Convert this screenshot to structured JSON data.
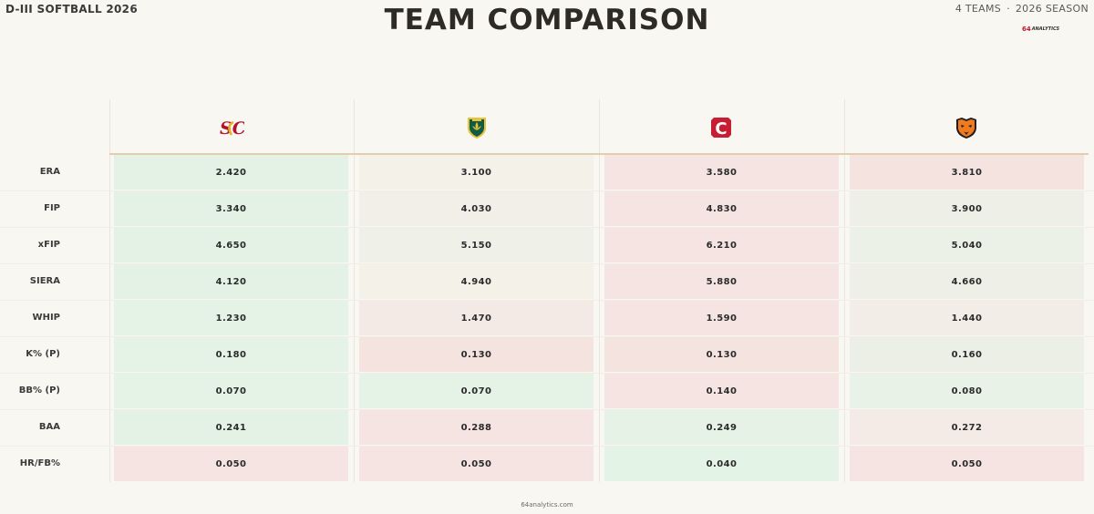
{
  "header": {
    "left_label": "D-III SOFTBALL 2026",
    "title": "TEAM COMPARISON",
    "right_teams": "4 TEAMS",
    "right_separator": "·",
    "right_season": "2026 SEASON",
    "brand_number": "64",
    "brand_word": "ANALYTICS"
  },
  "teams": [
    {
      "logo_icon": "sc-monogram-logo",
      "logo_text": "SC",
      "primary": "#b5112f",
      "secondary": "#e2b324"
    },
    {
      "logo_icon": "shield-fleur-logo",
      "primary": "#0f5b44",
      "secondary": "#e8c23a"
    },
    {
      "logo_icon": "block-c-logo",
      "logo_text": "C",
      "primary": "#c81d32",
      "secondary": "#ffffff"
    },
    {
      "logo_icon": "panther-head-logo",
      "primary": "#f07b1e",
      "secondary": "#1e1e1e"
    }
  ],
  "metrics": [
    {
      "label": "ERA",
      "values": [
        "2.420",
        "3.100",
        "3.580",
        "3.810"
      ]
    },
    {
      "label": "FIP",
      "values": [
        "3.340",
        "4.030",
        "4.830",
        "3.900"
      ]
    },
    {
      "label": "xFIP",
      "values": [
        "4.650",
        "5.150",
        "6.210",
        "5.040"
      ]
    },
    {
      "label": "SIERA",
      "values": [
        "4.120",
        "4.940",
        "5.880",
        "4.660"
      ]
    },
    {
      "label": "WHIP",
      "values": [
        "1.230",
        "1.470",
        "1.590",
        "1.440"
      ]
    },
    {
      "label": "K% (P)",
      "values": [
        "0.180",
        "0.130",
        "0.130",
        "0.160"
      ]
    },
    {
      "label": "BB% (P)",
      "values": [
        "0.070",
        "0.070",
        "0.140",
        "0.080"
      ]
    },
    {
      "label": "BAA",
      "values": [
        "0.241",
        "0.288",
        "0.249",
        "0.272"
      ]
    },
    {
      "label": "HR/FB%",
      "values": [
        "0.050",
        "0.050",
        "0.040",
        "0.050"
      ]
    }
  ],
  "cell_colors": [
    [
      "#e3f2e4",
      "#f3f1e8",
      "#f5e4e1",
      "#f5e3e0"
    ],
    [
      "#e3f2e4",
      "#f2efe9",
      "#f5e4e1",
      "#eeefe6"
    ],
    [
      "#e4f2e5",
      "#eff0e8",
      "#f5e4e1",
      "#ecf1e8"
    ],
    [
      "#e4f2e5",
      "#f3f1e8",
      "#f5e4e1",
      "#eef0e7"
    ],
    [
      "#e5f2e6",
      "#f3e9e5",
      "#f5e4e1",
      "#f2ede7"
    ],
    [
      "#e5f2e6",
      "#f5e3e0",
      "#f5e3e0",
      "#ecefe6"
    ],
    [
      "#e5f2e6",
      "#e5f2e6",
      "#f5e4e1",
      "#e8f2e7"
    ],
    [
      "#e3f2e4",
      "#f5e4e1",
      "#e7f2e7",
      "#f4ebe6"
    ],
    [
      "#f5e4e1",
      "#f5e4e1",
      "#e3f3e5",
      "#f5e4e1"
    ]
  ],
  "footer": {
    "site": "64analytics.com"
  }
}
